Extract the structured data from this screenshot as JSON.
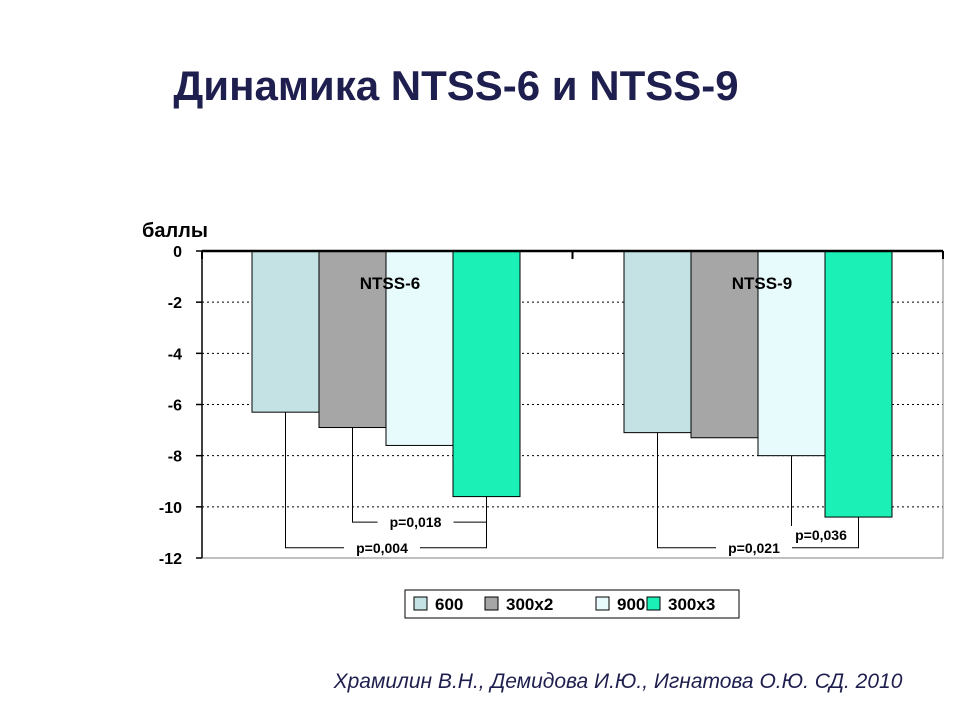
{
  "slide": {
    "title": "Динамика NTSS-6 и NTSS-9",
    "citation": "Храмилин В.Н., Демидова И.Ю., Игнатова О.Ю. СД. 2010"
  },
  "chart_data": {
    "type": "bar",
    "ylabel": "баллы",
    "ylim": [
      -12,
      0
    ],
    "yticks": [
      0,
      -2,
      -4,
      -6,
      -8,
      -10,
      -12
    ],
    "grid": true,
    "legend_position": "bottom",
    "categories": [
      "NTSS-6",
      "NTSS-9"
    ],
    "series": [
      {
        "name": "600",
        "values": [
          -6.3,
          -7.1
        ],
        "color": "#c4e1e3"
      },
      {
        "name": "300x2",
        "values": [
          -6.9,
          -7.3
        ],
        "color": "#a6a6a6"
      },
      {
        "name": "900",
        "values": [
          -7.6,
          -8.0
        ],
        "color": "#e7fbfd"
      },
      {
        "name": "300x3",
        "values": [
          -9.6,
          -10.4
        ],
        "color": "#1bf0b6"
      }
    ],
    "annotations": [
      {
        "group": 0,
        "from_series": 1,
        "to_series": 3,
        "text": "p=0,018",
        "level": -10.6
      },
      {
        "group": 0,
        "from_series": 0,
        "to_series": 3,
        "text": "p=0,004",
        "level": -11.6
      },
      {
        "group": 1,
        "from_series": 2,
        "to_series": 3,
        "text": "p=0,036",
        "level": -11.1
      },
      {
        "group": 1,
        "from_series": 0,
        "to_series": 3,
        "text": "p=0,021",
        "level": -11.6
      }
    ]
  }
}
